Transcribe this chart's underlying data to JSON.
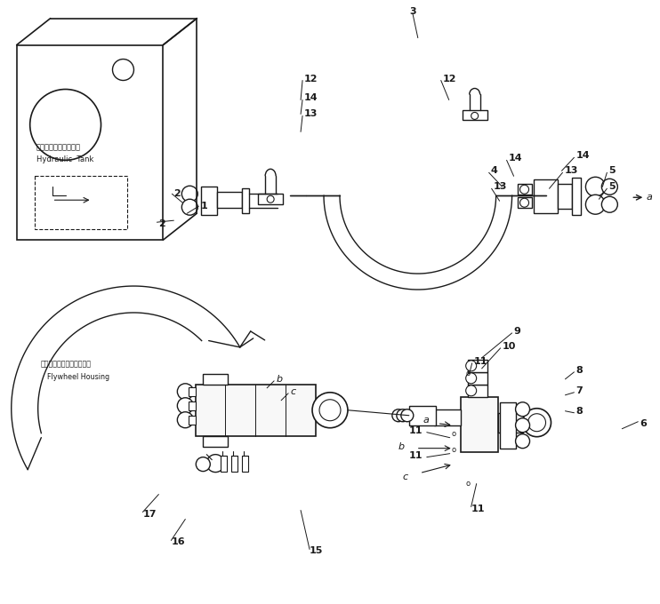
{
  "bg_color": "#ffffff",
  "lc": "#1a1a1a",
  "fig_w": 7.42,
  "fig_h": 6.8,
  "dpi": 100,
  "labels": {
    "tank_jp": "ハイドロリックタンク",
    "tank_en": "Hydraulic  Tank",
    "fw_jp": "フライホイルハウジング：",
    "fw_en": "Flywheel Housing"
  }
}
